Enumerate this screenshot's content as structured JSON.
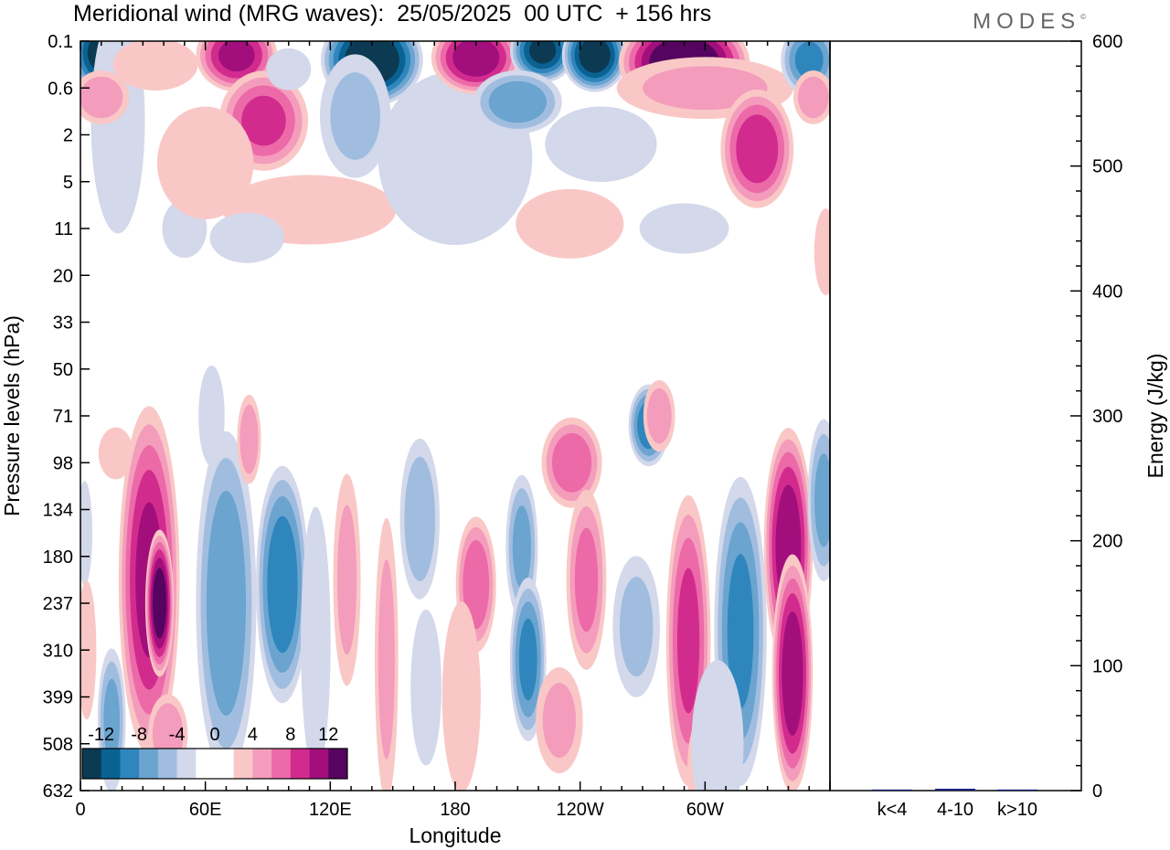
{
  "header": {
    "title": "Meridional wind (MRG waves):  25/05/2025  00 UTC  + 156 hrs",
    "brand": "MODES",
    "brand_mark": "©"
  },
  "colors": {
    "negative": [
      "#0b3a52",
      "#0a6293",
      "#2f86bd",
      "#6aa4cf",
      "#a0bde0",
      "#d3d8ea"
    ],
    "positive": [
      "#f9c8c6",
      "#f49cbc",
      "#ec6aa8",
      "#d22b8e",
      "#a20f7d",
      "#55045f"
    ],
    "frame": "#000000",
    "bar": "#1a237e"
  },
  "chart_data": [
    {
      "type": "heatmap",
      "title": "Meridional wind (MRG waves):  25/05/2025  00 UTC  + 156 hrs",
      "xlabel": "Longitude",
      "ylabel": "Pressure levels (hPa)",
      "x_ticks": [
        "0",
        "60E",
        "120E",
        "180",
        "120W",
        "60W"
      ],
      "x_tick_values": [
        0,
        60,
        120,
        180,
        240,
        300
      ],
      "xlim": [
        0,
        360
      ],
      "y_ticks": [
        "0.1",
        "0.6",
        "2",
        "5",
        "11",
        "20",
        "33",
        "50",
        "71",
        "98",
        "134",
        "180",
        "237",
        "310",
        "399",
        "508",
        "632"
      ],
      "y_order": "top-to-bottom",
      "colorbar": {
        "labels": [
          "-12",
          "-8",
          "-4",
          "0",
          "4",
          "8",
          "12"
        ],
        "levels": [
          -14,
          -12,
          -10,
          -8,
          -6,
          -4,
          -2,
          2,
          4,
          6,
          8,
          10,
          12,
          14
        ]
      },
      "features": [
        {
          "lon": 9,
          "level": 0.25,
          "value": -12,
          "w": 14,
          "h": 0.9
        },
        {
          "lon": 20,
          "level": 2.2,
          "value": -5,
          "w": 8,
          "h": 0.8
        },
        {
          "lon": 18,
          "level": 1.7,
          "value": -3,
          "w": 14,
          "h": 2.6
        },
        {
          "lon": 50,
          "level": 4.0,
          "value": -2,
          "w": 12,
          "h": 0.7
        },
        {
          "lon": 36,
          "level": 0.5,
          "value": 3,
          "w": 22,
          "h": 0.6
        },
        {
          "lon": 10,
          "level": 1.2,
          "value": 5,
          "w": 14,
          "h": 0.6
        },
        {
          "lon": 75,
          "level": 0.3,
          "value": 10,
          "w": 20,
          "h": 0.8
        },
        {
          "lon": 88,
          "level": 1.7,
          "value": 8,
          "w": 22,
          "h": 1.1
        },
        {
          "lon": 60,
          "level": 2.6,
          "value": 3,
          "w": 25,
          "h": 1.3
        },
        {
          "lon": 110,
          "level": 3.6,
          "value": 3,
          "w": 45,
          "h": 0.8
        },
        {
          "lon": 140,
          "level": 0.4,
          "value": -14,
          "w": 25,
          "h": 1.0
        },
        {
          "lon": 132,
          "level": 1.6,
          "value": -4,
          "w": 18,
          "h": 1.4
        },
        {
          "lon": 100,
          "level": 0.6,
          "value": -2,
          "w": 12,
          "h": 0.5
        },
        {
          "lon": 180,
          "level": 2.5,
          "value": -3,
          "w": 40,
          "h": 2.0
        },
        {
          "lon": 190,
          "level": 0.35,
          "value": 11,
          "w": 22,
          "h": 0.8
        },
        {
          "lon": 222,
          "level": 0.2,
          "value": -12,
          "w": 16,
          "h": 0.7
        },
        {
          "lon": 210,
          "level": 1.3,
          "value": -7,
          "w": 22,
          "h": 0.7
        },
        {
          "lon": 247,
          "level": 0.3,
          "value": -13,
          "w": 16,
          "h": 0.8
        },
        {
          "lon": 250,
          "level": 2.2,
          "value": -2,
          "w": 30,
          "h": 0.9
        },
        {
          "lon": 290,
          "level": 0.45,
          "value": 14,
          "w": 32,
          "h": 1.0
        },
        {
          "lon": 300,
          "level": 1.0,
          "value": 4,
          "w": 45,
          "h": 0.7
        },
        {
          "lon": 325,
          "level": 2.3,
          "value": 9,
          "w": 18,
          "h": 1.3
        },
        {
          "lon": 350,
          "level": 0.4,
          "value": -8,
          "w": 14,
          "h": 0.8
        },
        {
          "lon": 352,
          "level": 1.2,
          "value": 5,
          "w": 10,
          "h": 0.6
        },
        {
          "lon": 235,
          "level": 3.9,
          "value": 3,
          "w": 28,
          "h": 0.8
        },
        {
          "lon": 290,
          "level": 4.0,
          "value": -2,
          "w": 24,
          "h": 0.6
        },
        {
          "lon": 80,
          "level": 4.2,
          "value": -2,
          "w": 20,
          "h": 0.6
        },
        {
          "lon": 358,
          "level": 4.5,
          "value": 3,
          "w": 6,
          "h": 1.0
        },
        {
          "lon": 17,
          "level": 8.8,
          "value": 3,
          "w": 9,
          "h": 0.6
        },
        {
          "lon": 2,
          "level": 10.5,
          "value": -3,
          "w": 4,
          "h": 1.2
        },
        {
          "lon": 3,
          "level": 13.0,
          "value": 3,
          "w": 5,
          "h": 1.6
        },
        {
          "lon": 33,
          "level": 11.5,
          "value": 10,
          "w": 15,
          "h": 3.8
        },
        {
          "lon": 38,
          "level": 12.0,
          "value": 13,
          "w": 7,
          "h": 1.6
        },
        {
          "lon": 15,
          "level": 14.5,
          "value": -6,
          "w": 7,
          "h": 1.6
        },
        {
          "lon": 42,
          "level": 14.8,
          "value": 5,
          "w": 10,
          "h": 0.9
        },
        {
          "lon": 70,
          "level": 12.0,
          "value": -7,
          "w": 15,
          "h": 3.8
        },
        {
          "lon": 97,
          "level": 11.6,
          "value": -9,
          "w": 13,
          "h": 2.6
        },
        {
          "lon": 81,
          "level": 8.5,
          "value": 5,
          "w": 6,
          "h": 1.0
        },
        {
          "lon": 63,
          "level": 8.0,
          "value": -2,
          "w": 7,
          "h": 1.2
        },
        {
          "lon": 113,
          "level": 12.8,
          "value": -2,
          "w": 8,
          "h": 3.2
        },
        {
          "lon": 128,
          "level": 11.5,
          "value": 4,
          "w": 7,
          "h": 2.4
        },
        {
          "lon": 147,
          "level": 13.2,
          "value": 4,
          "w": 6,
          "h": 3.2
        },
        {
          "lon": 163,
          "level": 10.2,
          "value": -5,
          "w": 10,
          "h": 1.8
        },
        {
          "lon": 166,
          "level": 13.8,
          "value": -3,
          "w": 8,
          "h": 1.8
        },
        {
          "lon": 190,
          "level": 11.6,
          "value": 7,
          "w": 10,
          "h": 1.5
        },
        {
          "lon": 212,
          "level": 10.8,
          "value": -6,
          "w": 8,
          "h": 1.6
        },
        {
          "lon": 215,
          "level": 13.2,
          "value": -8,
          "w": 9,
          "h": 1.8
        },
        {
          "lon": 236,
          "level": 9.0,
          "value": 7,
          "w": 15,
          "h": 1.0
        },
        {
          "lon": 243,
          "level": 11.5,
          "value": 6,
          "w": 10,
          "h": 2.0
        },
        {
          "lon": 230,
          "level": 14.5,
          "value": 4,
          "w": 12,
          "h": 1.2
        },
        {
          "lon": 273,
          "level": 8.2,
          "value": -9,
          "w": 10,
          "h": 0.9
        },
        {
          "lon": 278,
          "level": 8.0,
          "value": 5,
          "w": 8,
          "h": 0.8
        },
        {
          "lon": 267,
          "level": 12.5,
          "value": -4,
          "w": 12,
          "h": 1.6
        },
        {
          "lon": 292,
          "level": 12.8,
          "value": 8,
          "w": 11,
          "h": 3.2
        },
        {
          "lon": 297,
          "level": 15.6,
          "value": 3,
          "w": 6,
          "h": 1.2
        },
        {
          "lon": 317,
          "level": 12.6,
          "value": -8,
          "w": 13,
          "h": 3.4
        },
        {
          "lon": 340,
          "level": 10.8,
          "value": 11,
          "w": 12,
          "h": 2.6
        },
        {
          "lon": 342,
          "level": 13.5,
          "value": 11,
          "w": 10,
          "h": 2.6
        },
        {
          "lon": 357,
          "level": 9.8,
          "value": -6,
          "w": 8,
          "h": 1.8
        },
        {
          "lon": 183,
          "level": 14.0,
          "value": 3,
          "w": 10,
          "h": 2.2
        },
        {
          "lon": 306,
          "level": 15.0,
          "value": -2,
          "w": 14,
          "h": 2.0
        }
      ]
    },
    {
      "type": "bar",
      "ylabel": "Energy (J/kg)",
      "categories": [
        "k<4",
        "4-10",
        "k>10"
      ],
      "values": [
        0.5,
        1.5,
        0.4
      ],
      "ylim": [
        0,
        600
      ],
      "y_ticks": [
        "0",
        "100",
        "200",
        "300",
        "400",
        "500",
        "600"
      ]
    }
  ]
}
